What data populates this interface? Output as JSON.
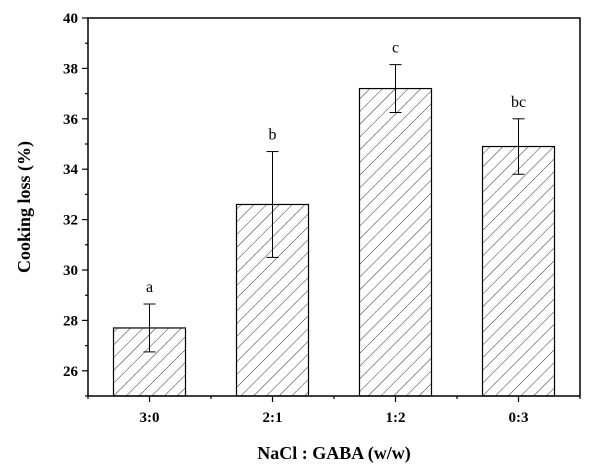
{
  "chart_data": {
    "type": "bar",
    "title": "",
    "xlabel": "NaCl : GABA (w/w)",
    "ylabel": "Cooking loss (%)",
    "categories": [
      "3:0",
      "2:1",
      "1:2",
      "0:3"
    ],
    "values": [
      27.7,
      32.6,
      37.2,
      34.9
    ],
    "errors": [
      0.95,
      2.1,
      0.95,
      1.1
    ],
    "significance_labels": [
      "a",
      "b",
      "c",
      "bc"
    ],
    "ylim": [
      25,
      40
    ],
    "yticks": [
      26,
      28,
      30,
      32,
      34,
      36,
      38,
      40
    ],
    "bar_fill": "hatched",
    "grid": false,
    "legend": "none"
  }
}
